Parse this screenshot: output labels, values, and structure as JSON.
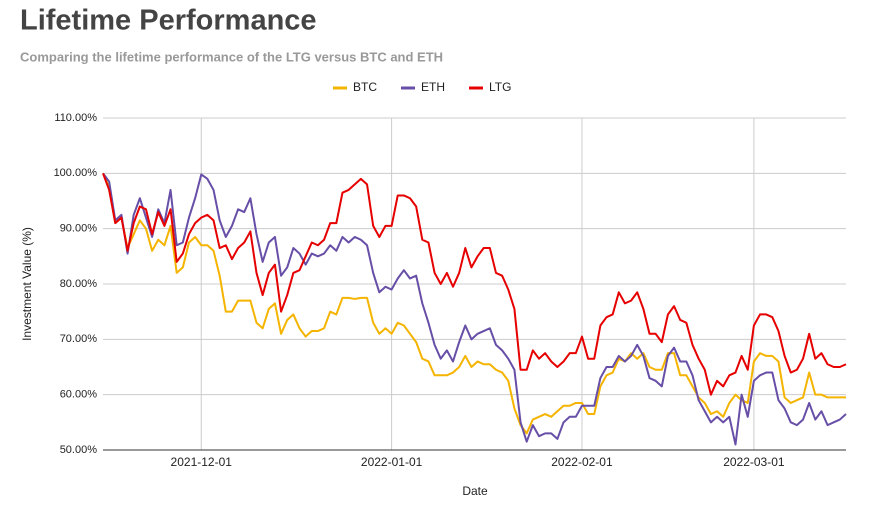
{
  "chart_data": {
    "type": "line",
    "title": "Lifetime Performance",
    "subtitle": "Comparing the lifetime performance of the LTG versus BTC and ETH",
    "x_label": "Date",
    "y_label": "Investment Value (%)",
    "legend": "top",
    "grid": true,
    "x": [
      "2021-11-15",
      "2021-11-16",
      "2021-11-17",
      "2021-11-18",
      "2021-11-19",
      "2021-11-20",
      "2021-11-21",
      "2021-11-22",
      "2021-11-23",
      "2021-11-24",
      "2021-11-25",
      "2021-11-26",
      "2021-11-27",
      "2021-11-28",
      "2021-11-29",
      "2021-11-30",
      "2021-12-01",
      "2021-12-02",
      "2021-12-03",
      "2021-12-04",
      "2021-12-05",
      "2021-12-06",
      "2021-12-07",
      "2021-12-08",
      "2021-12-09",
      "2021-12-10",
      "2021-12-11",
      "2021-12-12",
      "2021-12-13",
      "2021-12-14",
      "2021-12-15",
      "2021-12-16",
      "2021-12-17",
      "2021-12-18",
      "2021-12-19",
      "2021-12-20",
      "2021-12-21",
      "2021-12-22",
      "2021-12-23",
      "2021-12-24",
      "2021-12-25",
      "2021-12-26",
      "2021-12-27",
      "2021-12-28",
      "2021-12-29",
      "2021-12-30",
      "2021-12-31",
      "2022-01-01",
      "2022-01-02",
      "2022-01-03",
      "2022-01-04",
      "2022-01-05",
      "2022-01-06",
      "2022-01-07",
      "2022-01-08",
      "2022-01-09",
      "2022-01-10",
      "2022-01-11",
      "2022-01-12",
      "2022-01-13",
      "2022-01-14",
      "2022-01-15",
      "2022-01-16",
      "2022-01-17",
      "2022-01-18",
      "2022-01-19",
      "2022-01-20",
      "2022-01-21",
      "2022-01-22",
      "2022-01-23",
      "2022-01-24",
      "2022-01-25",
      "2022-01-26",
      "2022-01-27",
      "2022-01-28",
      "2022-01-29",
      "2022-01-30",
      "2022-01-31",
      "2022-02-01",
      "2022-02-02",
      "2022-02-03",
      "2022-02-04",
      "2022-02-05",
      "2022-02-06",
      "2022-02-07",
      "2022-02-08",
      "2022-02-09",
      "2022-02-10",
      "2022-02-11",
      "2022-02-12",
      "2022-02-13",
      "2022-02-14",
      "2022-02-15",
      "2022-02-16",
      "2022-02-17",
      "2022-02-18",
      "2022-02-19",
      "2022-02-20",
      "2022-02-21",
      "2022-02-22",
      "2022-02-23",
      "2022-02-24",
      "2022-02-25",
      "2022-02-26",
      "2022-02-27",
      "2022-02-28",
      "2022-03-01",
      "2022-03-02",
      "2022-03-03",
      "2022-03-04",
      "2022-03-05",
      "2022-03-06",
      "2022-03-07",
      "2022-03-08",
      "2022-03-09",
      "2022-03-10",
      "2022-03-11",
      "2022-03-12",
      "2022-03-13",
      "2022-03-14",
      "2022-03-15",
      "2022-03-16"
    ],
    "series": [
      {
        "name": "BTC",
        "color": "#f4b400",
        "values": [
          100,
          97.5,
          91,
          92,
          86.5,
          89,
          91.5,
          90,
          86,
          88,
          87,
          90.5,
          82,
          83,
          87.5,
          88.5,
          87,
          87,
          86,
          81.5,
          75,
          75,
          77,
          77,
          77,
          73,
          72,
          75.5,
          76.5,
          71,
          73.5,
          74.5,
          72,
          70.5,
          71.5,
          71.5,
          72,
          75,
          74.5,
          77.5,
          77.5,
          77.3,
          77.5,
          77.5,
          73,
          71,
          72,
          71,
          73,
          72.5,
          71,
          69.5,
          66.5,
          66,
          63.5,
          63.5,
          63.5,
          64,
          65,
          67,
          65,
          66,
          65.5,
          65.5,
          64.5,
          64,
          62.5,
          57.5,
          54.5,
          53,
          55.5,
          56,
          56.5,
          56,
          57,
          58,
          58,
          58.5,
          58.5,
          56.5,
          56.5,
          61.5,
          63.5,
          64,
          66.5,
          66,
          67.5,
          66.5,
          67.5,
          65,
          64.5,
          64.5,
          67.5,
          67.5,
          63.5,
          63.5,
          61.5,
          59.5,
          58.5,
          56.5,
          57,
          56,
          58.5,
          60,
          59,
          58.5,
          66,
          67.5,
          67,
          67,
          66,
          59.5,
          58.5,
          59,
          59.5,
          64,
          60,
          60,
          59.5,
          59.5,
          59.5,
          59.5
        ]
      },
      {
        "name": "ETH",
        "color": "#674ea7",
        "values": [
          100,
          98.5,
          91.5,
          92.5,
          85.5,
          92.5,
          95.5,
          92,
          88.5,
          93.5,
          91,
          97,
          87,
          87.5,
          92,
          95.5,
          99.8,
          99,
          97,
          91.5,
          88.5,
          90.5,
          93.5,
          93,
          95.5,
          89,
          84,
          87.5,
          88.5,
          81.5,
          83,
          86.5,
          85.5,
          83.5,
          85.5,
          85,
          85.5,
          87,
          86,
          88.5,
          87.5,
          88.5,
          88,
          87,
          82,
          78.5,
          79.5,
          79,
          81,
          82.5,
          81,
          81.5,
          76.5,
          73,
          69,
          66.5,
          68,
          66,
          69.5,
          72.5,
          70,
          71,
          71.5,
          72,
          69,
          68,
          66.5,
          64.5,
          55,
          51.5,
          54.5,
          52.5,
          53,
          53,
          52,
          55,
          56,
          56,
          58,
          58,
          58,
          63,
          65,
          65,
          67,
          66,
          67,
          69,
          67,
          63,
          62.5,
          61.5,
          67,
          68.5,
          66,
          66,
          63.5,
          59,
          57,
          55,
          56,
          55,
          56,
          51,
          60,
          56,
          62.5,
          63.5,
          64,
          64,
          59,
          57.5,
          55,
          54.5,
          55.5,
          58.5,
          55.5,
          57,
          54.5,
          55,
          55.5,
          56.5
        ]
      },
      {
        "name": "LTG",
        "color": "#e60000",
        "values": [
          100,
          97,
          91,
          92,
          86,
          91,
          94,
          93.5,
          89,
          93,
          90.5,
          93.5,
          84,
          85.5,
          89,
          91,
          92,
          92.5,
          91.5,
          86.5,
          87,
          84.5,
          86.5,
          87.5,
          89.5,
          82,
          78,
          82,
          83.5,
          75,
          78,
          82,
          82.5,
          85,
          87.5,
          87,
          88,
          91,
          91,
          96.5,
          97,
          98,
          99,
          98,
          90.5,
          88.5,
          90.5,
          90.5,
          96,
          96,
          95.5,
          94,
          88,
          87.5,
          82,
          80,
          82,
          79.5,
          82,
          86.5,
          83,
          85,
          86.5,
          86.5,
          82,
          81.5,
          79,
          75.5,
          64.5,
          64.5,
          68,
          66.5,
          67.5,
          66,
          65,
          66,
          67.5,
          67.5,
          70.5,
          66.5,
          66.5,
          72.5,
          74,
          74.5,
          78.5,
          76.5,
          77,
          78.5,
          75.5,
          71,
          71,
          69.5,
          74.5,
          76,
          73.5,
          73,
          69,
          66.5,
          64.5,
          60,
          62.5,
          61.5,
          63.5,
          64,
          67,
          64.5,
          72.5,
          74.5,
          74.5,
          74,
          71.5,
          67,
          64,
          64.5,
          66.5,
          71,
          66.5,
          67.5,
          65.5,
          65,
          65,
          65.5
        ]
      }
    ],
    "xlim": [
      "2021-11-15",
      "2022-03-16"
    ],
    "xticks": [
      "2021-12-01",
      "2022-01-01",
      "2022-02-01",
      "2022-03-01"
    ],
    "ylim": [
      50,
      110
    ],
    "yticks": [
      {
        "value": 50,
        "label": "50.00%"
      },
      {
        "value": 60,
        "label": "60.00%"
      },
      {
        "value": 70,
        "label": "70.00%"
      },
      {
        "value": 80,
        "label": "80.00%"
      },
      {
        "value": 90,
        "label": "90.00%"
      },
      {
        "value": 100,
        "label": "100.00%"
      },
      {
        "value": 110,
        "label": "110.00%"
      }
    ]
  }
}
